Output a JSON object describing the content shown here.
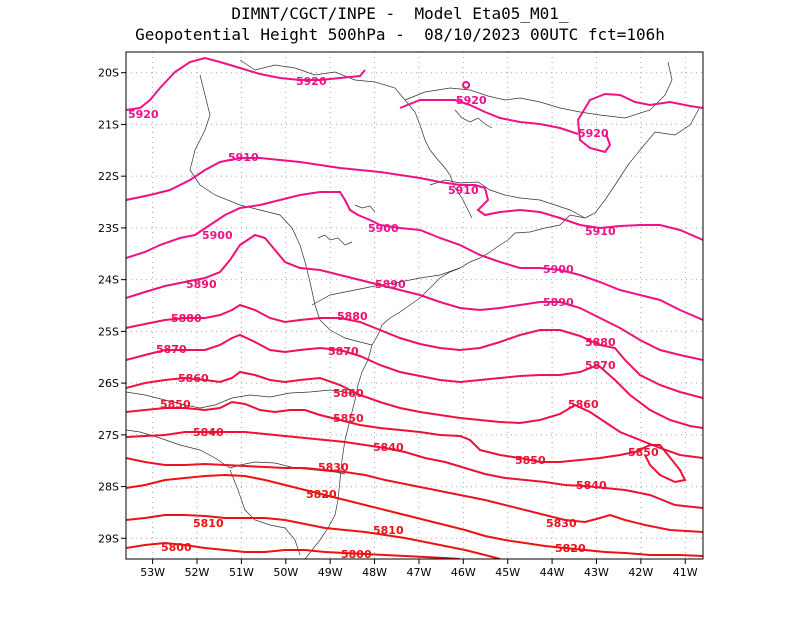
{
  "header": {
    "line1": "DIMNT/CGCT/INPE -  Model Eta05_M01_",
    "line2": "Geopotential Height 500hPa -  08/10/2023 00UTC fct=106h"
  },
  "map": {
    "variable": "Geopotential Height 500hPa",
    "lon_range": [
      -53.6,
      -40.6
    ],
    "lat_range": [
      -29.4,
      -19.6
    ],
    "grid": true,
    "coastline": true,
    "lon_ticks": [
      "53W",
      "52W",
      "51W",
      "50W",
      "49W",
      "48W",
      "47W",
      "46W",
      "45W",
      "44W",
      "43W",
      "42W",
      "41W"
    ],
    "lat_ticks": [
      "20S",
      "21S",
      "22S",
      "23S",
      "24S",
      "25S",
      "26S",
      "27S",
      "28S",
      "29S"
    ]
  },
  "contours": [
    {
      "value": "5920",
      "color": "#ee1188",
      "labels": [
        "5920",
        "5920",
        "5920",
        "5920"
      ]
    },
    {
      "value": "5910",
      "color": "#ee1188",
      "labels": [
        "5910",
        "5910",
        "5910"
      ]
    },
    {
      "value": "5900",
      "color": "#ee1188",
      "labels": [
        "5900",
        "5900",
        "5900"
      ]
    },
    {
      "value": "5890",
      "color": "#ee1177",
      "labels": [
        "5890",
        "5890",
        "5890"
      ]
    },
    {
      "value": "5880",
      "color": "#ee1166",
      "labels": [
        "5880",
        "5880",
        "5880"
      ]
    },
    {
      "value": "5870",
      "color": "#ee1155",
      "labels": [
        "5870",
        "5870",
        "5870"
      ]
    },
    {
      "value": "5860",
      "color": "#ee1144",
      "labels": [
        "5860",
        "5860",
        "5860"
      ]
    },
    {
      "value": "5850",
      "color": "#ee1133",
      "labels": [
        "5850",
        "5850",
        "5850",
        "5850"
      ]
    },
    {
      "value": "5840",
      "color": "#ee1133",
      "labels": [
        "5840",
        "5840",
        "5840"
      ]
    },
    {
      "value": "5830",
      "color": "#ee1122",
      "labels": [
        "5830",
        "5830"
      ]
    },
    {
      "value": "5820",
      "color": "#ee1111",
      "labels": [
        "5820",
        "5820"
      ]
    },
    {
      "value": "5810",
      "color": "#ee1111",
      "labels": [
        "5810",
        "5810"
      ]
    },
    {
      "value": "5800",
      "color": "#ee1111",
      "labels": [
        "5800",
        "5800"
      ]
    }
  ]
}
